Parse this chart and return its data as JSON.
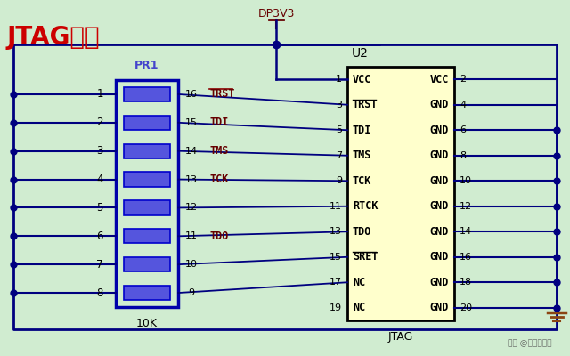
{
  "title": "JTAG接口",
  "bg_color": "#d0ecd0",
  "title_color": "#cc0000",
  "title_fontsize": 20,
  "u2_label": "U2",
  "pr1_label": "PR1",
  "pr1_value": "10K",
  "jtag_label": "JTAG",
  "dp3v3_label": "DP3V3",
  "watermark": "头条 @玩转嵌入式",
  "left_pins": [
    {
      "num": 1,
      "res_num": 16,
      "signal": "TRST",
      "overline": true,
      "ic_pin": 3
    },
    {
      "num": 2,
      "res_num": 15,
      "signal": "TDI",
      "overline": false,
      "ic_pin": 5
    },
    {
      "num": 3,
      "res_num": 14,
      "signal": "TMS",
      "overline": false,
      "ic_pin": 7
    },
    {
      "num": 4,
      "res_num": 13,
      "signal": "TCK",
      "overline": false,
      "ic_pin": 9
    },
    {
      "num": 5,
      "res_num": 12,
      "signal": "",
      "overline": false,
      "ic_pin": 11
    },
    {
      "num": 6,
      "res_num": 11,
      "signal": "TDO",
      "overline": false,
      "ic_pin": 13
    },
    {
      "num": 7,
      "res_num": 10,
      "signal": "",
      "overline": false,
      "ic_pin": 15
    },
    {
      "num": 8,
      "res_num": 9,
      "signal": "",
      "overline": false,
      "ic_pin": 17
    }
  ],
  "ic_left_pins": [
    {
      "name": "VCC",
      "overline": false,
      "num": 1
    },
    {
      "name": "TRST",
      "overline": true,
      "num": 3
    },
    {
      "name": "TDI",
      "overline": false,
      "num": 5
    },
    {
      "name": "TMS",
      "overline": false,
      "num": 7
    },
    {
      "name": "TCK",
      "overline": false,
      "num": 9
    },
    {
      "name": "RTCK",
      "overline": false,
      "num": 11
    },
    {
      "name": "TDO",
      "overline": false,
      "num": 13
    },
    {
      "name": "SRET",
      "overline": true,
      "num": 15
    },
    {
      "name": "NC",
      "overline": false,
      "num": 17
    },
    {
      "name": "NC",
      "overline": false,
      "num": 19
    }
  ],
  "ic_right_pins": [
    {
      "name": "VCC",
      "overline": false,
      "num": 2
    },
    {
      "name": "GND",
      "overline": false,
      "num": 4
    },
    {
      "name": "GND",
      "overline": false,
      "num": 6
    },
    {
      "name": "GND",
      "overline": false,
      "num": 8
    },
    {
      "name": "GND",
      "overline": false,
      "num": 10
    },
    {
      "name": "GND",
      "overline": false,
      "num": 12
    },
    {
      "name": "GND",
      "overline": false,
      "num": 14
    },
    {
      "name": "GND",
      "overline": false,
      "num": 16
    },
    {
      "name": "GND",
      "overline": false,
      "num": 18
    },
    {
      "name": "GND",
      "overline": false,
      "num": 20
    }
  ],
  "wire_color": "#000080",
  "ic_fill": "#ffffcc",
  "ic_border": "#000000",
  "res_fill": "#5555dd",
  "res_border": "#0000aa",
  "signal_color": "#660000",
  "gnd_color": "#8B4513"
}
